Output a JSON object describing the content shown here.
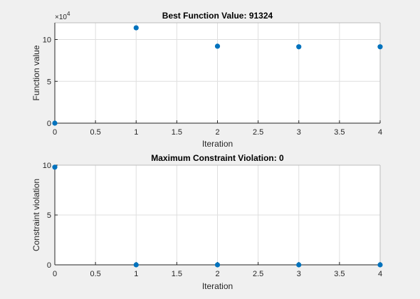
{
  "figure": {
    "background": "#f0f0f0",
    "axes_background": "#ffffff",
    "grid_color": "#dfdfdf",
    "axis_color": "#262626",
    "marker_color": "#0072bd"
  },
  "chart_data": [
    {
      "type": "scatter",
      "title": "Best Function Value: 91324",
      "xlabel": "Iteration",
      "ylabel": "Function value",
      "xlim": [
        0,
        4
      ],
      "ylim": [
        0,
        12
      ],
      "xticks": [
        0,
        0.5,
        1,
        1.5,
        2,
        2.5,
        3,
        3.5,
        4
      ],
      "xtick_labels": [
        "0",
        "0.5",
        "1",
        "1.5",
        "2",
        "2.5",
        "3",
        "3.5",
        "4"
      ],
      "yticks": [
        0,
        5,
        10
      ],
      "ytick_labels": [
        "0",
        "5",
        "10"
      ],
      "y_exponent_label": "×10",
      "y_exponent_power": "4",
      "grid": true,
      "series": [
        {
          "x": [
            0,
            1,
            2,
            3,
            4
          ],
          "y": [
            0,
            11.4,
            9.2,
            9.13,
            9.13
          ]
        }
      ]
    },
    {
      "type": "scatter",
      "title": "Maximum Constraint Violation: 0",
      "xlabel": "Iteration",
      "ylabel": "Constraint violation",
      "xlim": [
        0,
        4
      ],
      "ylim": [
        0,
        10
      ],
      "xticks": [
        0,
        0.5,
        1,
        1.5,
        2,
        2.5,
        3,
        3.5,
        4
      ],
      "xtick_labels": [
        "0",
        "0.5",
        "1",
        "1.5",
        "2",
        "2.5",
        "3",
        "3.5",
        "4"
      ],
      "yticks": [
        0,
        5,
        10
      ],
      "ytick_labels": [
        "0",
        "5",
        "10"
      ],
      "grid": true,
      "series": [
        {
          "x": [
            0,
            1,
            2,
            3,
            4
          ],
          "y": [
            9.8,
            0,
            0,
            0,
            0
          ]
        }
      ]
    }
  ]
}
